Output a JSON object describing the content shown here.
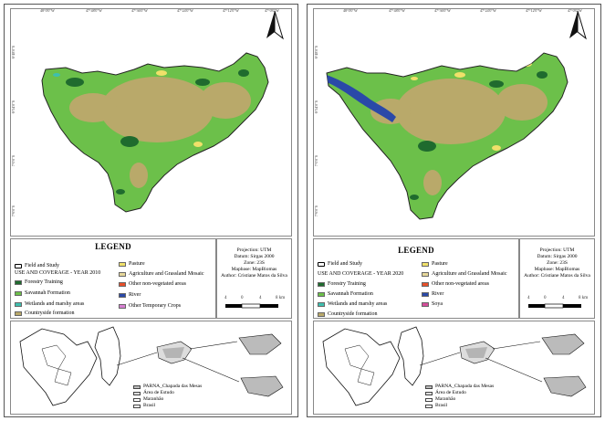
{
  "colors": {
    "forestry": "#1f6b2e",
    "savannah": "#6cc04a",
    "wetlands": "#3fbfae",
    "countryside": "#b9a96a",
    "pasture": "#f0e06a",
    "agriculture": "#e6d79a",
    "non_vegetated": "#e8502a",
    "river": "#2a49a8",
    "other_crops": "#d77fd2",
    "soya": "#d44d9a",
    "hatch": "#999999"
  },
  "left": {
    "ticks_top": [
      "48°0'0\"W",
      "47°48'0\"W",
      "47°36'0\"W",
      "47°24'0\"W",
      "47°12'0\"W",
      "47°0'0\"W"
    ],
    "ticks_left": [
      "6°48'0\"S",
      "6°54'0\"S",
      "7°0'0\"S",
      "7°6'0\"S"
    ],
    "legend_title": "LEGEND",
    "field_label": "Field and Study",
    "use_label": "USE AND COVERAGE - YEAR 2010",
    "items_col1": [
      "Forestry Training",
      "Savannah Formation",
      "Wetlands and marshy areas",
      "Countryside formation"
    ],
    "items_col2": [
      "Pasture",
      "Agriculture and Grassland Mosaic",
      "Other non-vegetated areas",
      "River",
      "Other Temporary Crops"
    ],
    "projection": "Projection: UTM",
    "datum": "Datum: Sirgas 2000",
    "zone": "Zone: 23S",
    "mapbase": "Mapbase: MapBiomas",
    "author": "Author: Cristiane Matos da Silva",
    "scale_labels": [
      "4",
      "0",
      "4",
      "8 km"
    ],
    "loc_legend": [
      "PARNA_Chapada das Mesas",
      "Área de Estudo",
      "Maranhão",
      "Brasil"
    ]
  },
  "right": {
    "ticks_top": [
      "48°0'0\"W",
      "47°48'0\"W",
      "47°36'0\"W",
      "47°24'0\"W",
      "47°12'0\"W",
      "47°0'0\"W"
    ],
    "ticks_left": [
      "6°48'0\"S",
      "6°54'0\"S",
      "7°0'0\"S",
      "7°6'0\"S"
    ],
    "legend_title": "LEGEND",
    "field_label": "Field and Study",
    "use_label": "USE AND COVERAGE - YEAR 2020",
    "items_col1": [
      "Forestry Training",
      "Savannah Formation",
      "Wetlands and marshy areas",
      "Countryside formation"
    ],
    "items_col2": [
      "Pasture",
      "Agriculture and Grassland Mosaic",
      "Other non-vegetated areas",
      "River",
      "Soya"
    ],
    "projection": "Projection: UTM",
    "datum": "Datum: Sirgas 2000",
    "zone": "Zone: 23S",
    "mapbase": "Mapbase: MapBiomas",
    "author": "Author: Cristiane Matos da Silva",
    "scale_labels": [
      "4",
      "0",
      "4",
      "8 km"
    ],
    "loc_legend": [
      "PARNA_Chapada das Mesas",
      "Área de Estudo",
      "Maranhão",
      "Brasil"
    ]
  }
}
